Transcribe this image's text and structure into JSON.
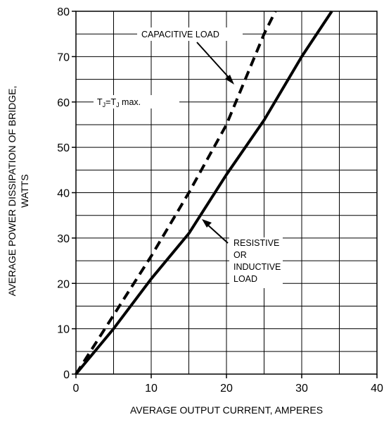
{
  "chart_data": {
    "type": "line",
    "xlabel": "AVERAGE OUTPUT CURRENT, AMPERES",
    "ylabel_line1": "AVERAGE POWER DISSIPATION OF BRIDGE,",
    "ylabel_line2": "WATTS",
    "xlim": [
      0,
      40
    ],
    "ylim": [
      0,
      80
    ],
    "x_ticks": [
      0,
      10,
      20,
      30,
      40
    ],
    "y_ticks": [
      0,
      10,
      20,
      30,
      40,
      50,
      60,
      70,
      80
    ],
    "x_tick_labels": [
      "0",
      "10",
      "20",
      "30",
      "40"
    ],
    "y_tick_labels": [
      "0",
      "10",
      "20",
      "30",
      "40",
      "50",
      "60",
      "70",
      "80"
    ],
    "grid": true,
    "minor_y_grid_step": 5,
    "series": [
      {
        "name": "RESISTIVE OR INDUCTIVE LOAD",
        "style": "solid",
        "color": "#000000",
        "x": [
          0,
          5,
          10,
          15,
          20,
          25,
          30,
          34
        ],
        "y": [
          0,
          10,
          21,
          31,
          44,
          56,
          70,
          80
        ]
      },
      {
        "name": "CAPACITIVE LOAD",
        "style": "dashed",
        "color": "#000000",
        "x": [
          0,
          5,
          10,
          15,
          20,
          25,
          26.5
        ],
        "y": [
          0,
          13,
          26,
          40,
          55,
          75,
          80
        ]
      }
    ],
    "annotations": {
      "capacitive": "CAPACITIVE LOAD",
      "resistive": [
        "RESISTIVE",
        "OR",
        "INDUCTIVE",
        "LOAD"
      ],
      "tj_main": "T",
      "tj_sub1": "J",
      "tj_eq": "=T",
      "tj_sub2": "J",
      "tj_max": " max."
    }
  }
}
